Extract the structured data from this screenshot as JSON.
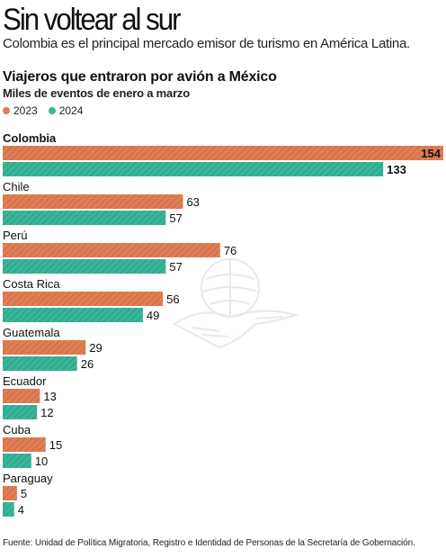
{
  "header": {
    "headline": "Sin voltear al sur",
    "deck": "Colombia es el principal mercado emisor de turismo en América Latina."
  },
  "chart_data": {
    "type": "bar",
    "orientation": "horizontal",
    "title": "Viajeros que entraron por avión a México",
    "subtitle": "Miles de eventos de enero a marzo",
    "categories": [
      "Colombia",
      "Chile",
      "Perú",
      "Costa Rica",
      "Guatemala",
      "Ecuador",
      "Cuba",
      "Paraguay"
    ],
    "series": [
      {
        "name": "2023",
        "color": "#e07e55",
        "values": [
          154,
          63,
          76,
          56,
          29,
          13,
          15,
          5
        ]
      },
      {
        "name": "2024",
        "color": "#3ab59a",
        "values": [
          133,
          57,
          57,
          49,
          26,
          12,
          10,
          4
        ]
      }
    ],
    "xlim": [
      0,
      154
    ],
    "bar_style": "diagonal-hatch",
    "grid": false,
    "legend_position": "top-left",
    "highlight_category": "Colombia"
  },
  "footer": {
    "source": "Fuente: Unidad de Política Migratoria, Registro e Identidad de Personas de la Secretaría de Gobernación."
  },
  "watermark": {
    "icon": "eagle-seal-icon"
  }
}
